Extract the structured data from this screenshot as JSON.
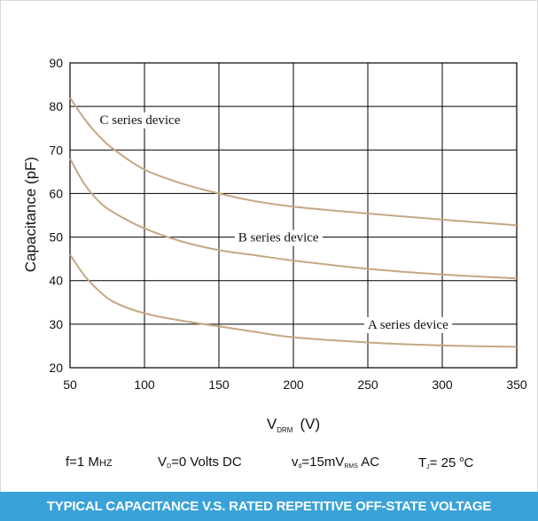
{
  "chart_data": {
    "type": "line",
    "title": "TYPICAL CAPACITANCE V.S. RATED REPETITIVE OFF-STATE VOLTAGE",
    "xlabel": {
      "main": "V",
      "sub": "DRM",
      "unit": "(V)"
    },
    "ylabel": "Capacitance (pF)",
    "xlim": [
      50,
      350
    ],
    "ylim": [
      20,
      90
    ],
    "xticks": [
      50,
      100,
      150,
      200,
      250,
      300,
      350
    ],
    "yticks": [
      20,
      30,
      40,
      50,
      60,
      70,
      80,
      90
    ],
    "grid": true,
    "x": [
      50,
      60,
      70,
      80,
      100,
      125,
      150,
      175,
      200,
      250,
      300,
      350
    ],
    "series": [
      {
        "name": "C series device",
        "color": "#c4a882",
        "values": [
          82,
          77,
          73,
          70,
          65.5,
          62.3,
          60,
          58.2,
          57,
          55.4,
          54,
          52.7
        ]
      },
      {
        "name": "B series device",
        "color": "#c4a882",
        "values": [
          68,
          62,
          58,
          55.5,
          52,
          49,
          47,
          45.8,
          44.6,
          42.7,
          41.4,
          40.5
        ]
      },
      {
        "name": "A series device",
        "color": "#c4a882",
        "values": [
          46,
          41,
          37.5,
          35,
          32.5,
          30.8,
          29.5,
          28.2,
          27,
          25.8,
          25.1,
          24.8
        ]
      }
    ],
    "annotations": [
      {
        "text": "C series device",
        "x": 97,
        "y": 77
      },
      {
        "text": "B series device",
        "x": 190,
        "y": 50
      },
      {
        "text": "A series device",
        "x": 277,
        "y": 30
      }
    ]
  },
  "conditions": {
    "freq": "f=1 M",
    "freq_unit": "HZ",
    "vd_label": "V",
    "vd_sub": "D",
    "vd_value": "=0 Volts DC",
    "vac_label": "v",
    "vac_sub": "d",
    "vac_value": "=15mV",
    "vac_sub2": "RMS",
    "vac_suffix": " AC",
    "tj_label": "T",
    "tj_sub": "J",
    "tj_value": "= 25 ",
    "tj_deg": "o",
    "tj_unit": "C"
  },
  "caption": "TYPICAL CAPACITANCE V.S. RATED REPETITIVE OFF-STATE VOLTAGE"
}
